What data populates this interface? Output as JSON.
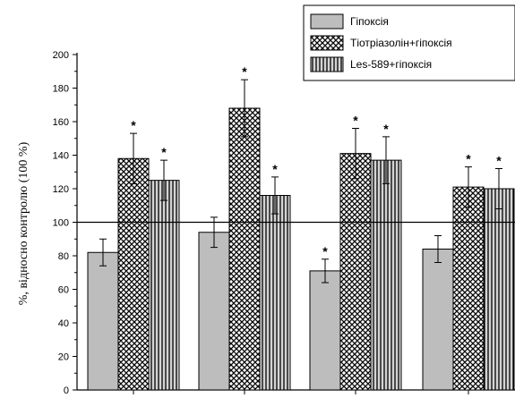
{
  "chart_data": {
    "type": "bar",
    "title": "",
    "xlabel": "",
    "ylabel": "%, відносно контролю (100 %)",
    "ylim": [
      0,
      200
    ],
    "yticks": [
      0,
      20,
      40,
      60,
      80,
      100,
      120,
      140,
      160,
      180,
      200
    ],
    "reference_line": 100,
    "categories": [
      "",
      "",
      "",
      ""
    ],
    "legend_position": "top-right",
    "series": [
      {
        "name": "Гіпоксія",
        "pattern": "solid-gray",
        "color": "#bdbdbd",
        "values": [
          82,
          94,
          71,
          84
        ],
        "errors": [
          8,
          9,
          7,
          8
        ],
        "significant": [
          false,
          false,
          true,
          false
        ]
      },
      {
        "name": "Тіотріазолін+гіпоксія",
        "pattern": "crosshatch",
        "color": "#000000",
        "values": [
          138,
          168,
          141,
          121
        ],
        "errors": [
          15,
          17,
          15,
          12
        ],
        "significant": [
          true,
          true,
          true,
          true
        ]
      },
      {
        "name": "Les-589+гіпоксія",
        "pattern": "vertical-lines",
        "color": "#000000",
        "values": [
          125,
          116,
          137,
          120
        ],
        "errors": [
          12,
          11,
          14,
          12
        ],
        "significant": [
          true,
          true,
          true,
          true
        ]
      }
    ],
    "significance_marker": "*"
  }
}
